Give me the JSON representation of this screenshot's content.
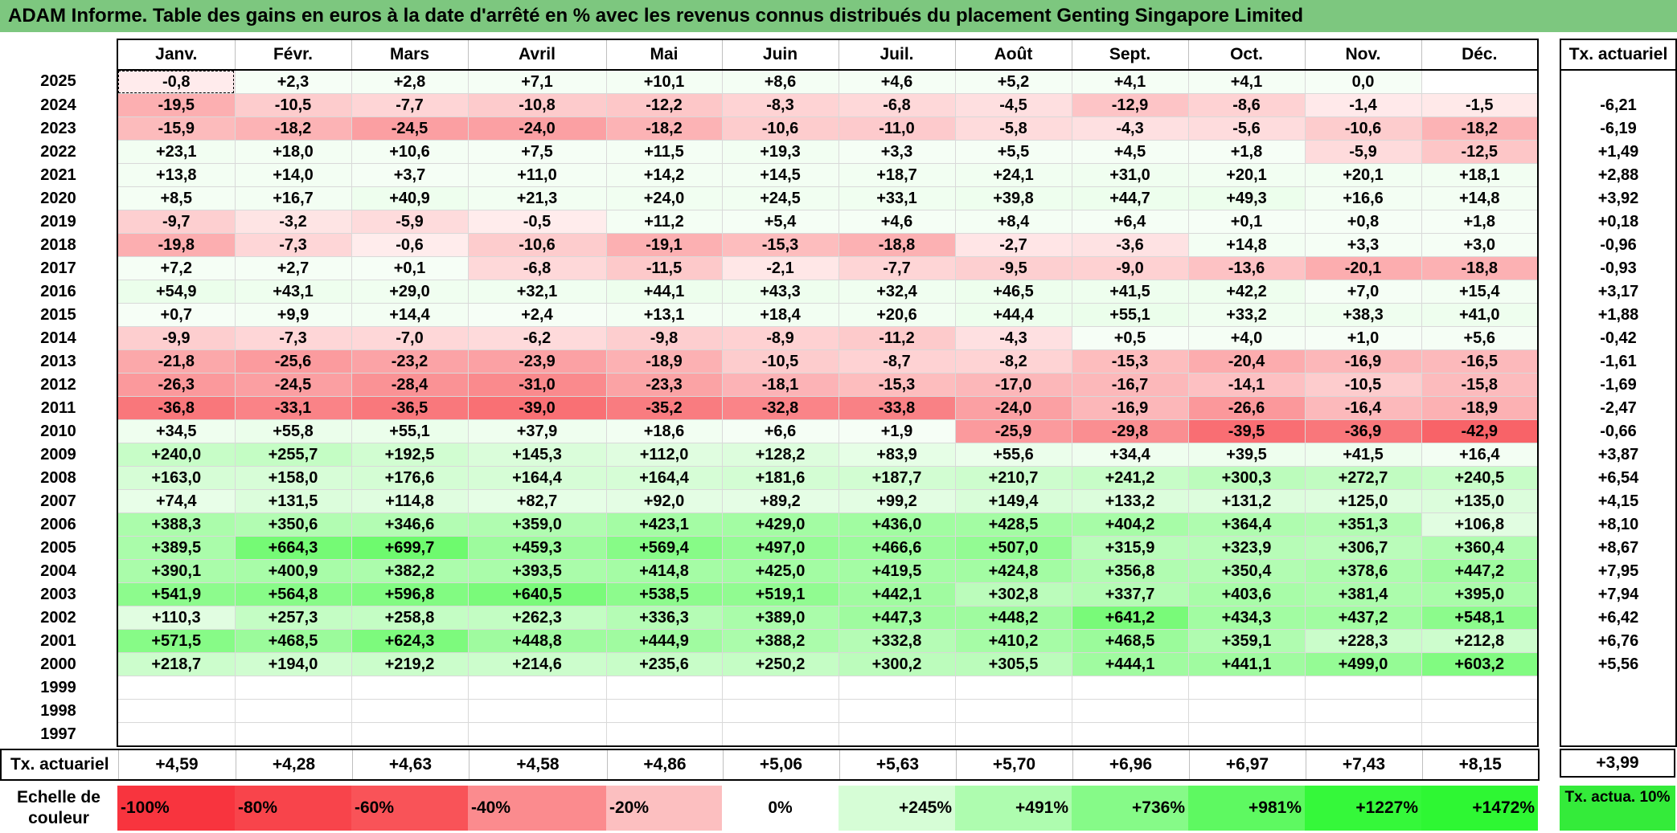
{
  "title": "ADAM Informe. Table des gains en euros à la date d'arrêté en % avec les revenus connus distribués du placement Genting Singapore Limited",
  "months": [
    "Janv.",
    "Févr.",
    "Mars",
    "Avril",
    "Mai",
    "Juin",
    "Juil.",
    "Août",
    "Sept.",
    "Oct.",
    "Nov.",
    "Déc."
  ],
  "rate_header": "Tx. actuariel",
  "rows": [
    {
      "year": "2025",
      "values": [
        "-0,8",
        "+2,3",
        "+2,8",
        "+7,1",
        "+10,1",
        "+8,6",
        "+4,6",
        "+5,2",
        "+4,1",
        "+4,1",
        "0,0",
        ""
      ],
      "rate": ""
    },
    {
      "year": "2024",
      "values": [
        "-19,5",
        "-10,5",
        "-7,7",
        "-10,8",
        "-12,2",
        "-8,3",
        "-6,8",
        "-4,5",
        "-12,9",
        "-8,6",
        "-1,4",
        "-1,5"
      ],
      "rate": "-6,21"
    },
    {
      "year": "2023",
      "values": [
        "-15,9",
        "-18,2",
        "-24,5",
        "-24,0",
        "-18,2",
        "-10,6",
        "-11,0",
        "-5,8",
        "-4,3",
        "-5,6",
        "-10,6",
        "-18,2"
      ],
      "rate": "-6,19"
    },
    {
      "year": "2022",
      "values": [
        "+23,1",
        "+18,0",
        "+10,6",
        "+7,5",
        "+11,5",
        "+19,3",
        "+3,3",
        "+5,5",
        "+4,5",
        "+1,8",
        "-5,9",
        "-12,5"
      ],
      "rate": "+1,49"
    },
    {
      "year": "2021",
      "values": [
        "+13,8",
        "+14,0",
        "+3,7",
        "+11,0",
        "+14,2",
        "+14,5",
        "+18,7",
        "+24,1",
        "+31,0",
        "+20,1",
        "+20,1",
        "+18,1"
      ],
      "rate": "+2,88"
    },
    {
      "year": "2020",
      "values": [
        "+8,5",
        "+16,7",
        "+40,9",
        "+21,3",
        "+24,0",
        "+24,5",
        "+33,1",
        "+39,8",
        "+44,7",
        "+49,3",
        "+16,6",
        "+14,8"
      ],
      "rate": "+3,92"
    },
    {
      "year": "2019",
      "values": [
        "-9,7",
        "-3,2",
        "-5,9",
        "-0,5",
        "+11,2",
        "+5,4",
        "+4,6",
        "+8,4",
        "+6,4",
        "+0,1",
        "+0,8",
        "+1,8"
      ],
      "rate": "+0,18"
    },
    {
      "year": "2018",
      "values": [
        "-19,8",
        "-7,3",
        "-0,6",
        "-10,6",
        "-19,1",
        "-15,3",
        "-18,8",
        "-2,7",
        "-3,6",
        "+14,8",
        "+3,3",
        "+3,0"
      ],
      "rate": "-0,96"
    },
    {
      "year": "2017",
      "values": [
        "+7,2",
        "+2,7",
        "+0,1",
        "-6,8",
        "-11,5",
        "-2,1",
        "-7,7",
        "-9,5",
        "-9,0",
        "-13,6",
        "-20,1",
        "-18,8"
      ],
      "rate": "-0,93"
    },
    {
      "year": "2016",
      "values": [
        "+54,9",
        "+43,1",
        "+29,0",
        "+32,1",
        "+44,1",
        "+43,3",
        "+32,4",
        "+46,5",
        "+41,5",
        "+42,2",
        "+7,0",
        "+15,4"
      ],
      "rate": "+3,17"
    },
    {
      "year": "2015",
      "values": [
        "+0,7",
        "+9,9",
        "+14,4",
        "+2,4",
        "+13,1",
        "+18,4",
        "+20,6",
        "+44,4",
        "+55,1",
        "+33,2",
        "+38,3",
        "+41,0"
      ],
      "rate": "+1,88"
    },
    {
      "year": "2014",
      "values": [
        "-9,9",
        "-7,3",
        "-7,0",
        "-6,2",
        "-9,8",
        "-8,9",
        "-11,2",
        "-4,3",
        "+0,5",
        "+4,0",
        "+1,0",
        "+5,6"
      ],
      "rate": "-0,42"
    },
    {
      "year": "2013",
      "values": [
        "-21,8",
        "-25,6",
        "-23,2",
        "-23,9",
        "-18,9",
        "-10,5",
        "-8,7",
        "-8,2",
        "-15,3",
        "-20,4",
        "-16,9",
        "-16,5"
      ],
      "rate": "-1,61"
    },
    {
      "year": "2012",
      "values": [
        "-26,3",
        "-24,5",
        "-28,4",
        "-31,0",
        "-23,3",
        "-18,1",
        "-15,3",
        "-17,0",
        "-16,7",
        "-14,1",
        "-10,5",
        "-15,8"
      ],
      "rate": "-1,69"
    },
    {
      "year": "2011",
      "values": [
        "-36,8",
        "-33,1",
        "-36,5",
        "-39,0",
        "-35,2",
        "-32,8",
        "-33,8",
        "-24,0",
        "-16,9",
        "-26,6",
        "-16,4",
        "-18,9"
      ],
      "rate": "-2,47"
    },
    {
      "year": "2010",
      "values": [
        "+34,5",
        "+55,8",
        "+55,1",
        "+37,9",
        "+18,6",
        "+6,6",
        "+1,9",
        "-25,9",
        "-29,8",
        "-39,5",
        "-36,9",
        "-42,9"
      ],
      "rate": "-0,66"
    },
    {
      "year": "2009",
      "values": [
        "+240,0",
        "+255,7",
        "+192,5",
        "+145,3",
        "+112,0",
        "+128,2",
        "+83,9",
        "+55,6",
        "+34,4",
        "+39,5",
        "+41,5",
        "+16,4"
      ],
      "rate": "+3,87"
    },
    {
      "year": "2008",
      "values": [
        "+163,0",
        "+158,0",
        "+176,6",
        "+164,4",
        "+164,4",
        "+181,6",
        "+187,7",
        "+210,7",
        "+241,2",
        "+300,3",
        "+272,7",
        "+240,5"
      ],
      "rate": "+6,54"
    },
    {
      "year": "2007",
      "values": [
        "+74,4",
        "+131,5",
        "+114,8",
        "+82,7",
        "+92,0",
        "+89,2",
        "+99,2",
        "+149,4",
        "+133,2",
        "+131,2",
        "+125,0",
        "+135,0"
      ],
      "rate": "+4,15"
    },
    {
      "year": "2006",
      "values": [
        "+388,3",
        "+350,6",
        "+346,6",
        "+359,0",
        "+423,1",
        "+429,0",
        "+436,0",
        "+428,5",
        "+404,2",
        "+364,4",
        "+351,3",
        "+106,8"
      ],
      "rate": "+8,10"
    },
    {
      "year": "2005",
      "values": [
        "+389,5",
        "+664,3",
        "+699,7",
        "+459,3",
        "+569,4",
        "+497,0",
        "+466,6",
        "+507,0",
        "+315,9",
        "+323,9",
        "+306,7",
        "+360,4"
      ],
      "rate": "+8,67"
    },
    {
      "year": "2004",
      "values": [
        "+390,1",
        "+400,9",
        "+382,2",
        "+393,5",
        "+414,8",
        "+425,0",
        "+419,5",
        "+424,8",
        "+356,8",
        "+350,4",
        "+378,6",
        "+447,2"
      ],
      "rate": "+7,95"
    },
    {
      "year": "2003",
      "values": [
        "+541,9",
        "+564,8",
        "+596,8",
        "+640,5",
        "+538,5",
        "+519,1",
        "+442,1",
        "+302,8",
        "+337,7",
        "+403,6",
        "+381,4",
        "+395,0"
      ],
      "rate": "+7,94"
    },
    {
      "year": "2002",
      "values": [
        "+110,3",
        "+257,3",
        "+258,8",
        "+262,3",
        "+336,3",
        "+389,0",
        "+447,3",
        "+448,2",
        "+641,2",
        "+434,3",
        "+437,2",
        "+548,1"
      ],
      "rate": "+6,42"
    },
    {
      "year": "2001",
      "values": [
        "+571,5",
        "+468,5",
        "+624,3",
        "+448,8",
        "+444,9",
        "+388,2",
        "+332,8",
        "+410,2",
        "+468,5",
        "+359,1",
        "+228,3",
        "+212,8"
      ],
      "rate": "+6,76"
    },
    {
      "year": "2000",
      "values": [
        "+218,7",
        "+194,0",
        "+219,2",
        "+214,6",
        "+235,6",
        "+250,2",
        "+300,2",
        "+305,5",
        "+444,1",
        "+441,1",
        "+499,0",
        "+603,2"
      ],
      "rate": "+5,56"
    },
    {
      "year": "1999",
      "values": [
        "",
        "",
        "",
        "",
        "",
        "",
        "",
        "",
        "",
        "",
        "",
        ""
      ],
      "rate": ""
    },
    {
      "year": "1998",
      "values": [
        "",
        "",
        "",
        "",
        "",
        "",
        "",
        "",
        "",
        "",
        "",
        ""
      ],
      "rate": ""
    },
    {
      "year": "1997",
      "values": [
        "",
        "",
        "",
        "",
        "",
        "",
        "",
        "",
        "",
        "",
        "",
        ""
      ],
      "rate": ""
    }
  ],
  "footer": {
    "label": "Tx. actuariel",
    "values": [
      "+4,59",
      "+4,28",
      "+4,63",
      "+4,58",
      "+4,86",
      "+5,06",
      "+5,63",
      "+5,70",
      "+6,96",
      "+6,97",
      "+7,43",
      "+8,15"
    ],
    "total": "+3,99"
  },
  "scale": {
    "label": "Echelle de couleur",
    "items": [
      {
        "text": "-100%",
        "color": "#f8343e",
        "align": "left"
      },
      {
        "text": "-80%",
        "color": "#f8444b",
        "align": "left"
      },
      {
        "text": "-60%",
        "color": "#f95358",
        "align": "left"
      },
      {
        "text": "-40%",
        "color": "#fb8b8e",
        "align": "left"
      },
      {
        "text": "-20%",
        "color": "#fcbfc0",
        "align": "left"
      },
      {
        "text": "0%",
        "color": "#ffffff",
        "align": "center"
      },
      {
        "text": "+245%",
        "color": "#d6fdd6",
        "align": "right"
      },
      {
        "text": "+491%",
        "color": "#aefcaf",
        "align": "right"
      },
      {
        "text": "+736%",
        "color": "#86fa88",
        "align": "right"
      },
      {
        "text": "+981%",
        "color": "#5ef961",
        "align": "right"
      },
      {
        "text": "+1227%",
        "color": "#35f83a",
        "align": "right"
      },
      {
        "text": "+1472%",
        "color": "#2ef733",
        "align": "right"
      }
    ],
    "total_text": "Tx. actua. 10%",
    "total_color": "#34eb3a"
  }
}
